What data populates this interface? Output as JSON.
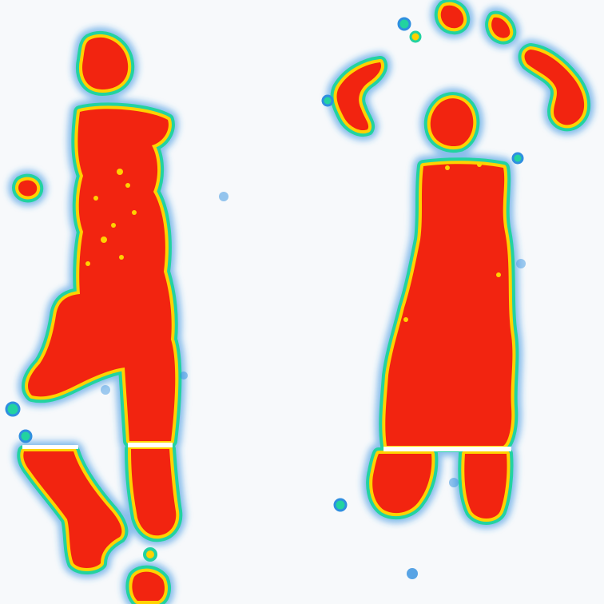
{
  "image": {
    "subject": "pressure-heatmap-two-footprints",
    "colors": {
      "background": "#f7f9fb",
      "low": "#2f8fe0",
      "mid_low": "#22d3a0",
      "mid": "#9bdc1e",
      "mid_high": "#ffd200",
      "high": "#f22410",
      "seam": "#ffffff"
    }
  }
}
